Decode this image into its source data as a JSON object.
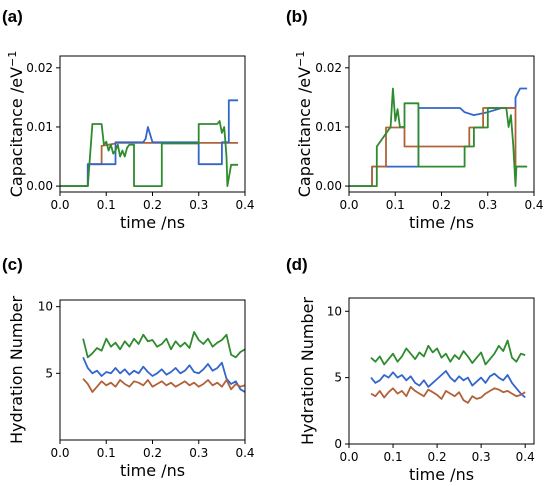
{
  "colors": {
    "blue": "#3366cc",
    "orange": "#b0623a",
    "green": "#2e8b2e"
  },
  "chart_data": [
    {
      "id": "a",
      "panel_label": "(a)",
      "type": "line",
      "xlabel": "time /ns",
      "ylabel": "Capacitance /eV",
      "ylabel_sup": "−1",
      "xlim": [
        0.0,
        0.4
      ],
      "ylim": [
        -0.001,
        0.022
      ],
      "xticks": [
        0.0,
        0.1,
        0.2,
        0.3,
        0.4
      ],
      "xtick_labels": [
        "0.0",
        "0.1",
        "0.2",
        "0.3",
        "0.4"
      ],
      "yticks": [
        0.0,
        0.01,
        0.02
      ],
      "ytick_labels": [
        "0.00",
        "0.01",
        "0.02"
      ],
      "series": [
        {
          "color": "orange",
          "x": [
            0.0,
            0.06,
            0.06,
            0.09,
            0.09,
            0.12,
            0.12,
            0.2,
            0.2,
            0.3,
            0.3,
            0.385
          ],
          "y": [
            0.0,
            0.0,
            0.0037,
            0.0037,
            0.0068,
            0.0072,
            0.0073,
            0.0073,
            0.0073,
            0.0073,
            0.0073,
            0.0073
          ]
        },
        {
          "color": "blue",
          "x": [
            0.0,
            0.06,
            0.06,
            0.12,
            0.12,
            0.18,
            0.185,
            0.19,
            0.2,
            0.26,
            0.3,
            0.3,
            0.35,
            0.35,
            0.365,
            0.365,
            0.385
          ],
          "y": [
            0.0,
            0.0,
            0.0037,
            0.0037,
            0.0074,
            0.0074,
            0.008,
            0.01,
            0.0074,
            0.0074,
            0.0074,
            0.0037,
            0.0037,
            0.0074,
            0.0074,
            0.0145,
            0.0145
          ]
        },
        {
          "color": "green",
          "x": [
            0.0,
            0.06,
            0.06,
            0.07,
            0.08,
            0.085,
            0.09,
            0.095,
            0.1,
            0.105,
            0.11,
            0.115,
            0.12,
            0.125,
            0.13,
            0.135,
            0.14,
            0.145,
            0.15,
            0.16,
            0.16,
            0.22,
            0.22,
            0.26,
            0.3,
            0.3,
            0.32,
            0.34,
            0.345,
            0.35,
            0.355,
            0.36,
            0.362,
            0.37,
            0.385
          ],
          "y": [
            0.0,
            0.0,
            0.0,
            0.0105,
            0.0105,
            0.0105,
            0.0105,
            0.007,
            0.0075,
            0.006,
            0.007,
            0.0055,
            0.006,
            0.007,
            0.005,
            0.006,
            0.005,
            0.0065,
            0.007,
            0.007,
            0.0,
            0.0,
            0.0072,
            0.0072,
            0.0072,
            0.0105,
            0.0105,
            0.0105,
            0.011,
            0.009,
            0.01,
            0.005,
            0.0,
            0.0036,
            0.0036
          ]
        }
      ]
    },
    {
      "id": "b",
      "panel_label": "(b)",
      "type": "line",
      "xlabel": "time /ns",
      "ylabel": "Capacitance /eV",
      "ylabel_sup": "−1",
      "xlim": [
        0.0,
        0.4
      ],
      "ylim": [
        -0.001,
        0.022
      ],
      "xticks": [
        0.0,
        0.1,
        0.2,
        0.3,
        0.4
      ],
      "xtick_labels": [
        "0.0",
        "0.1",
        "0.2",
        "0.3",
        "0.4"
      ],
      "yticks": [
        0.0,
        0.01,
        0.02
      ],
      "ytick_labels": [
        "0.00",
        "0.01",
        "0.02"
      ],
      "series": [
        {
          "color": "blue",
          "x": [
            0.0,
            0.05,
            0.05,
            0.15,
            0.15,
            0.24,
            0.25,
            0.27,
            0.3,
            0.33,
            0.36,
            0.36,
            0.37,
            0.38,
            0.385
          ],
          "y": [
            0.0,
            0.0,
            0.0033,
            0.0033,
            0.0132,
            0.0132,
            0.0125,
            0.012,
            0.0125,
            0.0132,
            0.0132,
            0.015,
            0.0165,
            0.0165,
            0.0165
          ]
        },
        {
          "color": "orange",
          "x": [
            0.0,
            0.05,
            0.05,
            0.08,
            0.08,
            0.12,
            0.12,
            0.15,
            0.15,
            0.26,
            0.26,
            0.29,
            0.29,
            0.33,
            0.33,
            0.36,
            0.36,
            0.385
          ],
          "y": [
            0.0,
            0.0,
            0.0033,
            0.0033,
            0.0099,
            0.0099,
            0.0067,
            0.0067,
            0.0067,
            0.0067,
            0.0099,
            0.0099,
            0.0132,
            0.0132,
            0.0132,
            0.0132,
            0.0033,
            0.0033
          ]
        },
        {
          "color": "green",
          "x": [
            0.0,
            0.05,
            0.05,
            0.06,
            0.06,
            0.09,
            0.095,
            0.1,
            0.105,
            0.11,
            0.12,
            0.12,
            0.15,
            0.15,
            0.25,
            0.25,
            0.27,
            0.27,
            0.3,
            0.3,
            0.33,
            0.34,
            0.345,
            0.35,
            0.355,
            0.36,
            0.362,
            0.37,
            0.385
          ],
          "y": [
            0.0,
            0.0,
            0.0,
            0.0,
            0.0067,
            0.01,
            0.0165,
            0.011,
            0.013,
            0.01,
            0.01,
            0.014,
            0.014,
            0.0033,
            0.0033,
            0.0067,
            0.0067,
            0.0099,
            0.0099,
            0.0132,
            0.0132,
            0.0132,
            0.01,
            0.012,
            0.007,
            0.0,
            0.0033,
            0.0033,
            0.0033
          ]
        }
      ]
    },
    {
      "id": "c",
      "panel_label": "(c)",
      "type": "line",
      "xlabel": "time /ns",
      "ylabel": "Hydration Number",
      "ylabel_sup": "",
      "xlim": [
        0.0,
        0.4
      ],
      "ylim": [
        0.0,
        10.5
      ],
      "xticks": [
        0.0,
        0.1,
        0.2,
        0.3,
        0.4
      ],
      "xtick_labels": [
        "0.0",
        "0.1",
        "0.2",
        "0.3",
        "0.4"
      ],
      "yticks": [
        5,
        10
      ],
      "ytick_labels": [
        "5",
        "10"
      ],
      "series": [
        {
          "color": "green",
          "x": [
            0.05,
            0.06,
            0.07,
            0.08,
            0.09,
            0.1,
            0.11,
            0.12,
            0.13,
            0.14,
            0.15,
            0.16,
            0.17,
            0.18,
            0.19,
            0.2,
            0.21,
            0.22,
            0.23,
            0.24,
            0.25,
            0.26,
            0.27,
            0.28,
            0.29,
            0.3,
            0.31,
            0.32,
            0.33,
            0.34,
            0.35,
            0.36,
            0.37,
            0.38,
            0.39,
            0.4
          ],
          "y": [
            7.6,
            6.2,
            6.5,
            6.9,
            6.7,
            7.6,
            7.0,
            7.3,
            6.8,
            7.4,
            7.0,
            7.6,
            7.2,
            7.9,
            7.4,
            7.5,
            7.0,
            7.2,
            7.6,
            6.8,
            7.4,
            7.0,
            7.3,
            6.9,
            8.1,
            7.5,
            7.2,
            7.6,
            7.0,
            7.3,
            7.5,
            7.9,
            6.4,
            6.2,
            6.6,
            6.8
          ]
        },
        {
          "color": "blue",
          "x": [
            0.05,
            0.06,
            0.07,
            0.08,
            0.09,
            0.1,
            0.11,
            0.12,
            0.13,
            0.14,
            0.15,
            0.16,
            0.17,
            0.18,
            0.19,
            0.2,
            0.21,
            0.22,
            0.23,
            0.24,
            0.25,
            0.26,
            0.27,
            0.28,
            0.29,
            0.3,
            0.31,
            0.32,
            0.33,
            0.34,
            0.35,
            0.36,
            0.37,
            0.38,
            0.39,
            0.4
          ],
          "y": [
            6.2,
            5.4,
            5.0,
            5.2,
            4.8,
            5.1,
            5.0,
            5.4,
            5.0,
            5.3,
            4.9,
            5.2,
            5.0,
            5.5,
            5.1,
            4.8,
            5.0,
            5.3,
            4.9,
            5.1,
            5.4,
            5.0,
            5.2,
            5.6,
            5.1,
            5.0,
            5.3,
            5.7,
            5.2,
            5.4,
            5.8,
            4.6,
            4.2,
            4.4,
            3.8,
            3.6
          ]
        },
        {
          "color": "orange",
          "x": [
            0.05,
            0.06,
            0.07,
            0.08,
            0.09,
            0.1,
            0.11,
            0.12,
            0.13,
            0.14,
            0.15,
            0.16,
            0.17,
            0.18,
            0.19,
            0.2,
            0.21,
            0.22,
            0.23,
            0.24,
            0.25,
            0.26,
            0.27,
            0.28,
            0.29,
            0.3,
            0.31,
            0.32,
            0.33,
            0.34,
            0.35,
            0.36,
            0.37,
            0.38,
            0.39,
            0.4
          ],
          "y": [
            4.6,
            4.2,
            3.6,
            4.0,
            4.4,
            4.1,
            4.3,
            4.0,
            4.5,
            4.2,
            4.0,
            4.4,
            4.3,
            4.1,
            4.5,
            4.0,
            4.2,
            4.4,
            4.1,
            4.3,
            4.0,
            4.2,
            4.4,
            4.1,
            4.3,
            4.0,
            4.2,
            4.5,
            4.1,
            4.3,
            4.0,
            4.5,
            3.8,
            4.2,
            4.0,
            4.1
          ]
        }
      ]
    },
    {
      "id": "d",
      "panel_label": "(d)",
      "type": "line",
      "xlabel": "time /ns",
      "ylabel": "Hydration Number",
      "ylabel_sup": "",
      "xlim": [
        0.0,
        0.42
      ],
      "ylim": [
        0.0,
        11.0
      ],
      "xticks": [
        0.0,
        0.1,
        0.2,
        0.3,
        0.4
      ],
      "xtick_labels": [
        "0.0",
        "0.1",
        "0.2",
        "0.3",
        "0.4"
      ],
      "yticks": [
        0,
        5,
        10
      ],
      "ytick_labels": [
        "0",
        "5",
        "10"
      ],
      "series": [
        {
          "color": "green",
          "x": [
            0.05,
            0.06,
            0.07,
            0.08,
            0.09,
            0.1,
            0.11,
            0.12,
            0.13,
            0.14,
            0.15,
            0.16,
            0.17,
            0.18,
            0.19,
            0.2,
            0.21,
            0.22,
            0.23,
            0.24,
            0.25,
            0.26,
            0.27,
            0.28,
            0.29,
            0.3,
            0.31,
            0.32,
            0.33,
            0.34,
            0.35,
            0.36,
            0.37,
            0.38,
            0.39,
            0.4
          ],
          "y": [
            6.5,
            6.2,
            6.6,
            6.0,
            6.4,
            6.8,
            6.2,
            6.6,
            7.2,
            6.8,
            6.4,
            6.9,
            6.6,
            7.4,
            6.9,
            7.2,
            6.5,
            6.8,
            6.2,
            6.7,
            6.4,
            7.0,
            6.6,
            6.1,
            6.5,
            6.9,
            6.0,
            6.4,
            6.8,
            7.4,
            7.0,
            7.8,
            6.5,
            6.2,
            6.8,
            6.7
          ]
        },
        {
          "color": "blue",
          "x": [
            0.05,
            0.06,
            0.07,
            0.08,
            0.09,
            0.1,
            0.11,
            0.12,
            0.13,
            0.14,
            0.15,
            0.16,
            0.17,
            0.18,
            0.19,
            0.2,
            0.21,
            0.22,
            0.23,
            0.24,
            0.25,
            0.26,
            0.27,
            0.28,
            0.29,
            0.3,
            0.31,
            0.32,
            0.33,
            0.34,
            0.35,
            0.36,
            0.37,
            0.38,
            0.39,
            0.4
          ],
          "y": [
            5.0,
            4.6,
            4.8,
            5.2,
            5.0,
            5.4,
            5.0,
            5.2,
            4.8,
            5.1,
            4.6,
            4.4,
            4.8,
            4.3,
            4.6,
            4.9,
            5.2,
            5.5,
            5.0,
            4.7,
            5.1,
            4.8,
            5.0,
            4.4,
            4.7,
            5.0,
            4.6,
            5.1,
            5.3,
            5.0,
            4.8,
            5.2,
            4.6,
            4.2,
            3.8,
            3.5
          ]
        },
        {
          "color": "orange",
          "x": [
            0.05,
            0.06,
            0.07,
            0.08,
            0.09,
            0.1,
            0.11,
            0.12,
            0.13,
            0.14,
            0.15,
            0.16,
            0.17,
            0.18,
            0.19,
            0.2,
            0.21,
            0.22,
            0.23,
            0.24,
            0.25,
            0.26,
            0.27,
            0.28,
            0.29,
            0.3,
            0.31,
            0.32,
            0.33,
            0.34,
            0.35,
            0.36,
            0.37,
            0.38,
            0.39,
            0.4
          ],
          "y": [
            3.8,
            3.6,
            4.0,
            3.5,
            3.9,
            4.2,
            3.8,
            4.0,
            3.6,
            4.3,
            4.0,
            3.8,
            3.6,
            4.1,
            3.9,
            3.7,
            3.4,
            4.0,
            3.8,
            3.6,
            3.9,
            3.3,
            3.1,
            3.6,
            3.4,
            3.5,
            3.8,
            4.0,
            4.2,
            4.1,
            3.9,
            4.0,
            3.8,
            3.6,
            3.7,
            3.9
          ]
        }
      ]
    }
  ]
}
